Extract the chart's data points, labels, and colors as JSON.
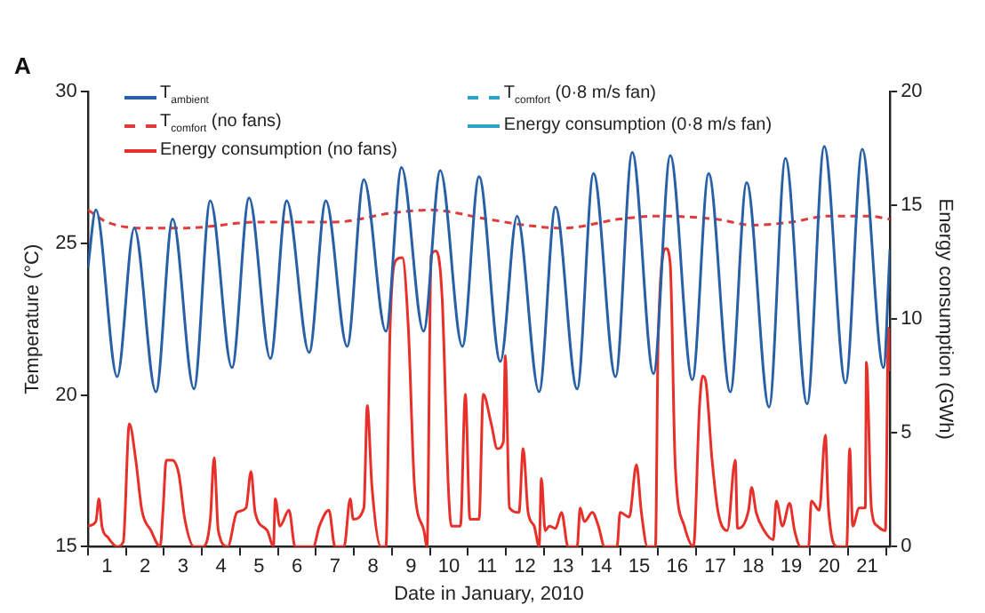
{
  "chart_data": {
    "type": "line",
    "title": "A",
    "xlabel": "Date in January, 2010",
    "ylabel": "Temperature (°C)",
    "y2label": "Energy consumption (GWh)",
    "xlim": [
      0.5,
      21.6
    ],
    "xticks": [
      {
        "value": 0.5,
        "label": null
      },
      1,
      {
        "value": 1.5,
        "label": null
      },
      2,
      {
        "value": 2.5,
        "label": null
      },
      3,
      {
        "value": 3.5,
        "label": null
      },
      4,
      {
        "value": 4.5,
        "label": null
      },
      5,
      {
        "value": 5.5,
        "label": null
      },
      6,
      {
        "value": 6.5,
        "label": null
      },
      7,
      {
        "value": 7.5,
        "label": null
      },
      8,
      {
        "value": 8.5,
        "label": null
      },
      9,
      {
        "value": 9.5,
        "label": null
      },
      10,
      {
        "value": 10.5,
        "label": null
      },
      11,
      {
        "value": 11.5,
        "label": null
      },
      12,
      {
        "value": 12.5,
        "label": null
      },
      13,
      {
        "value": 13.5,
        "label": null
      },
      14,
      {
        "value": 14.5,
        "label": null
      },
      15,
      {
        "value": 15.5,
        "label": null
      },
      16,
      {
        "value": 16.5,
        "label": null
      },
      17,
      {
        "value": 17.5,
        "label": null
      },
      18,
      {
        "value": 18.5,
        "label": null
      },
      19,
      {
        "value": 19.5,
        "label": null
      },
      20,
      {
        "value": 20.5,
        "label": null
      },
      21,
      {
        "value": 21.5,
        "label": null
      }
    ],
    "ylim": [
      15,
      30
    ],
    "yticks": [
      15,
      20,
      25,
      30
    ],
    "y2lim": [
      0,
      20
    ],
    "y2ticks": [
      0,
      5,
      10,
      15,
      20
    ],
    "grid": false,
    "legend": "top left",
    "marker": "none",
    "series": [
      {
        "name": "T$_{ambient}$",
        "color": "#2860a8",
        "line_style": "solid",
        "x": [
          0.5,
          0.71,
          1.27,
          1.72,
          2.29,
          2.73,
          3.29,
          3.72,
          4.29,
          4.74,
          5.3,
          5.73,
          6.32,
          6.76,
          7.32,
          7.76,
          8.34,
          8.75,
          9.33,
          9.77,
          10.35,
          10.79,
          11.35,
          11.79,
          12.37,
          12.8,
          13.37,
          13.8,
          14.38,
          14.82,
          15.38,
          15.82,
          16.4,
          16.83,
          17.4,
          17.83,
          18.42,
          18.85,
          19.42,
          19.87,
          20.43,
          20.87,
          21.43,
          21.6
        ],
        "values": [
          24.2,
          26.1,
          20.6,
          25.5,
          20.1,
          25.8,
          20.2,
          26.4,
          20.9,
          26.5,
          21.2,
          26.4,
          21.4,
          26.4,
          21.6,
          27.1,
          22.1,
          27.5,
          22.1,
          27.4,
          21.6,
          27.2,
          21.1,
          25.9,
          20.1,
          26.2,
          20.2,
          27.3,
          20.6,
          28.0,
          20.7,
          27.9,
          20.5,
          27.3,
          20.1,
          27.0,
          19.6,
          27.8,
          19.7,
          28.2,
          20.4,
          28.1,
          20.9,
          24.8
        ]
      },
      {
        "name": "T$_{comfort}$ (no fans)",
        "color": "#e03a3a",
        "line_style": "dashed",
        "x": [
          0.5,
          1,
          2,
          3,
          5,
          7,
          8.5,
          9.5,
          11,
          12,
          13,
          14.5,
          15.5,
          17,
          18,
          19,
          20,
          21,
          21.6
        ],
        "values": [
          26.1,
          25.7,
          25.5,
          25.5,
          25.7,
          25.7,
          26.0,
          26.1,
          25.8,
          25.6,
          25.5,
          25.8,
          25.9,
          25.8,
          25.6,
          25.7,
          25.9,
          25.9,
          25.8
        ]
      },
      {
        "name": "Energy consumption (no fans)",
        "color": "#e8302a",
        "line_style": "solid",
        "axis": "y2",
        "x": [
          0.5,
          0.71,
          0.79,
          0.87,
          1.03,
          1.27,
          1.43,
          1.59,
          1.76,
          1.92,
          2.16,
          2.4,
          2.48,
          2.56,
          2.72,
          2.89,
          3.05,
          3.29,
          3.53,
          3.72,
          3.82,
          3.93,
          4.18,
          4.42,
          4.66,
          4.79,
          4.9,
          5.22,
          5.38,
          5.43,
          5.55,
          5.79,
          5.95,
          6.43,
          6.59,
          6.84,
          7.0,
          7.24,
          7.4,
          7.48,
          7.76,
          7.85,
          7.97,
          8.21,
          8.34,
          8.45,
          8.61,
          8.77,
          8.93,
          9.09,
          9.34,
          9.42,
          9.53,
          9.66,
          9.82,
          9.98,
          10.06,
          10.3,
          10.43,
          10.55,
          10.79,
          10.9,
          11.11,
          11.27,
          11.43,
          11.48,
          11.59,
          11.84,
          11.95,
          12.08,
          12.24,
          12.37,
          12.43,
          12.53,
          12.64,
          12.8,
          12.96,
          13.13,
          13.37,
          13.45,
          13.56,
          13.77,
          13.93,
          14.09,
          14.42,
          14.5,
          14.74,
          14.93,
          15.06,
          15.22,
          15.43,
          15.5,
          15.71,
          15.82,
          15.95,
          16.19,
          16.43,
          16.59,
          16.67,
          16.75,
          16.92,
          17.08,
          17.32,
          17.53,
          17.59,
          17.88,
          17.96,
          18.08,
          18.29,
          18.53,
          18.61,
          18.77,
          18.96,
          19.09,
          19.25,
          19.46,
          19.53,
          19.74,
          19.9,
          19.98,
          20.22,
          20.46,
          20.54,
          20.62,
          20.79,
          20.95,
          20.98,
          21.11,
          21.27,
          21.48,
          21.56,
          21.6
        ],
        "values": [
          0.9,
          1.1,
          2.1,
          0.9,
          0.4,
          0,
          0.2,
          5.4,
          3.8,
          1.6,
          0.7,
          0,
          1.7,
          3.8,
          3.8,
          3.2,
          1.2,
          0,
          0,
          1.2,
          3.9,
          0.7,
          0,
          1.5,
          1.7,
          3.3,
          1.5,
          0.7,
          0,
          2.1,
          0.9,
          1.6,
          0,
          0,
          0.9,
          1.6,
          0,
          0,
          2.1,
          1.2,
          1.7,
          6.2,
          2.7,
          0,
          0,
          9.6,
          12.6,
          12.7,
          9.6,
          2.7,
          0.7,
          0,
          12.8,
          13.0,
          10.9,
          2.7,
          0.9,
          0.9,
          6.7,
          1.2,
          1.2,
          6.7,
          5.4,
          4.3,
          4.6,
          8.4,
          1.7,
          1.5,
          4.3,
          1.5,
          0.9,
          0,
          3.0,
          0.7,
          0.9,
          0.8,
          1.5,
          0,
          0,
          1.7,
          1.1,
          1.5,
          0.9,
          0,
          0,
          1.5,
          1.3,
          3.6,
          1.5,
          0,
          0,
          9.0,
          13.1,
          12.4,
          3.6,
          0.9,
          0,
          6.2,
          7.5,
          7.3,
          3.8,
          1.5,
          0.7,
          3.8,
          0.8,
          1.6,
          2.6,
          1.5,
          0.7,
          0.3,
          2.0,
          0.9,
          1.9,
          0.7,
          0,
          0,
          2.0,
          1.6,
          4.9,
          1.7,
          0,
          0,
          4.3,
          0.9,
          1.7,
          1.7,
          8.1,
          1.7,
          0.9,
          0.7,
          9.6,
          7.7
        ]
      },
      {
        "name": "T$_{comfort}$ (0·8 m/s fan)",
        "color": "#2ea3c8",
        "line_style": "dashed"
      },
      {
        "name": "Energy consumption (0·8 m/s fan)",
        "color": "#2ea3c8",
        "line_style": "solid",
        "axis": "y2"
      }
    ]
  }
}
